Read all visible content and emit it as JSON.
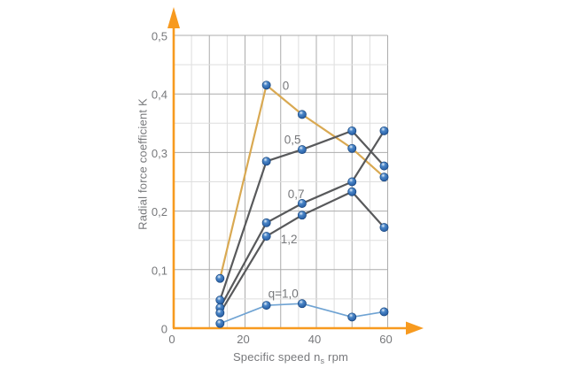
{
  "page": {
    "background": "#ffffff"
  },
  "chart_data": {
    "type": "line",
    "title": "",
    "ylabel": "Radial force coefficient K",
    "xlabel_prefix": "Specific speed n",
    "xlabel_sub": "s",
    "xlabel_suffix": " rpm",
    "xlim": [
      0,
      60
    ],
    "ylim": [
      0,
      0.5
    ],
    "grid": {
      "on": true,
      "x_minor_step": 5,
      "x_major_step": 10,
      "y_minor_step": 0.05,
      "y_major_step": 0.1
    },
    "legend_position": "inline-labels-on-curves",
    "x_ticks": [
      {
        "value": 0,
        "label": "0"
      },
      {
        "value": 20,
        "label": "20"
      },
      {
        "value": 40,
        "label": "40"
      },
      {
        "value": 60,
        "label": "60"
      }
    ],
    "y_ticks": [
      {
        "value": 0,
        "label": "0"
      },
      {
        "value": 0.1,
        "label": "0,1"
      },
      {
        "value": 0.2,
        "label": "0,2"
      },
      {
        "value": 0.3,
        "label": "0,3"
      },
      {
        "value": 0.4,
        "label": "0,4"
      },
      {
        "value": 0.5,
        "label": "0,5"
      }
    ],
    "series": [
      {
        "name": "q=0",
        "label": "0",
        "color": "#D9A952",
        "line_width": 2.2,
        "x": [
          13,
          26,
          36,
          50,
          59
        ],
        "y": [
          0.085,
          0.415,
          0.365,
          0.307,
          0.258
        ],
        "label_x": 30.5,
        "label_y": 0.414
      },
      {
        "name": "q=0,5",
        "label": "0,5",
        "color": "#58595B",
        "line_width": 2.2,
        "x": [
          13,
          26,
          36,
          50,
          59
        ],
        "y": [
          0.048,
          0.285,
          0.305,
          0.337,
          0.277
        ],
        "label_x": 31.0,
        "label_y": 0.322
      },
      {
        "name": "q=0,7",
        "label": "0,7",
        "color": "#58595B",
        "line_width": 2.2,
        "x": [
          13,
          26,
          36,
          50,
          59
        ],
        "y": [
          0.035,
          0.18,
          0.213,
          0.25,
          0.337
        ],
        "label_x": 32.0,
        "label_y": 0.229
      },
      {
        "name": "q=1,2",
        "label": "1,2",
        "color": "#58595B",
        "line_width": 2.2,
        "x": [
          13,
          26,
          36,
          50,
          59
        ],
        "y": [
          0.026,
          0.157,
          0.193,
          0.233,
          0.172
        ],
        "label_x": 30.0,
        "label_y": 0.152
      },
      {
        "name": "q=1,0",
        "label": "q=1,0",
        "color": "#6FA3D3",
        "line_width": 1.7,
        "x": [
          13,
          26,
          36,
          50,
          59
        ],
        "y": [
          0.008,
          0.039,
          0.042,
          0.019,
          0.028
        ],
        "label_x": 26.5,
        "label_y": 0.059
      }
    ],
    "colors": {
      "axis": "#F79A1F",
      "grid_minor": "#DEDEDE",
      "grid_major": "#ACACAC",
      "text": "#77787B",
      "marker_highlight": "#E9F2FB",
      "marker_mid": "#4A86C8",
      "marker_dark": "#1C4F96",
      "marker_rim": "#17467F"
    }
  }
}
